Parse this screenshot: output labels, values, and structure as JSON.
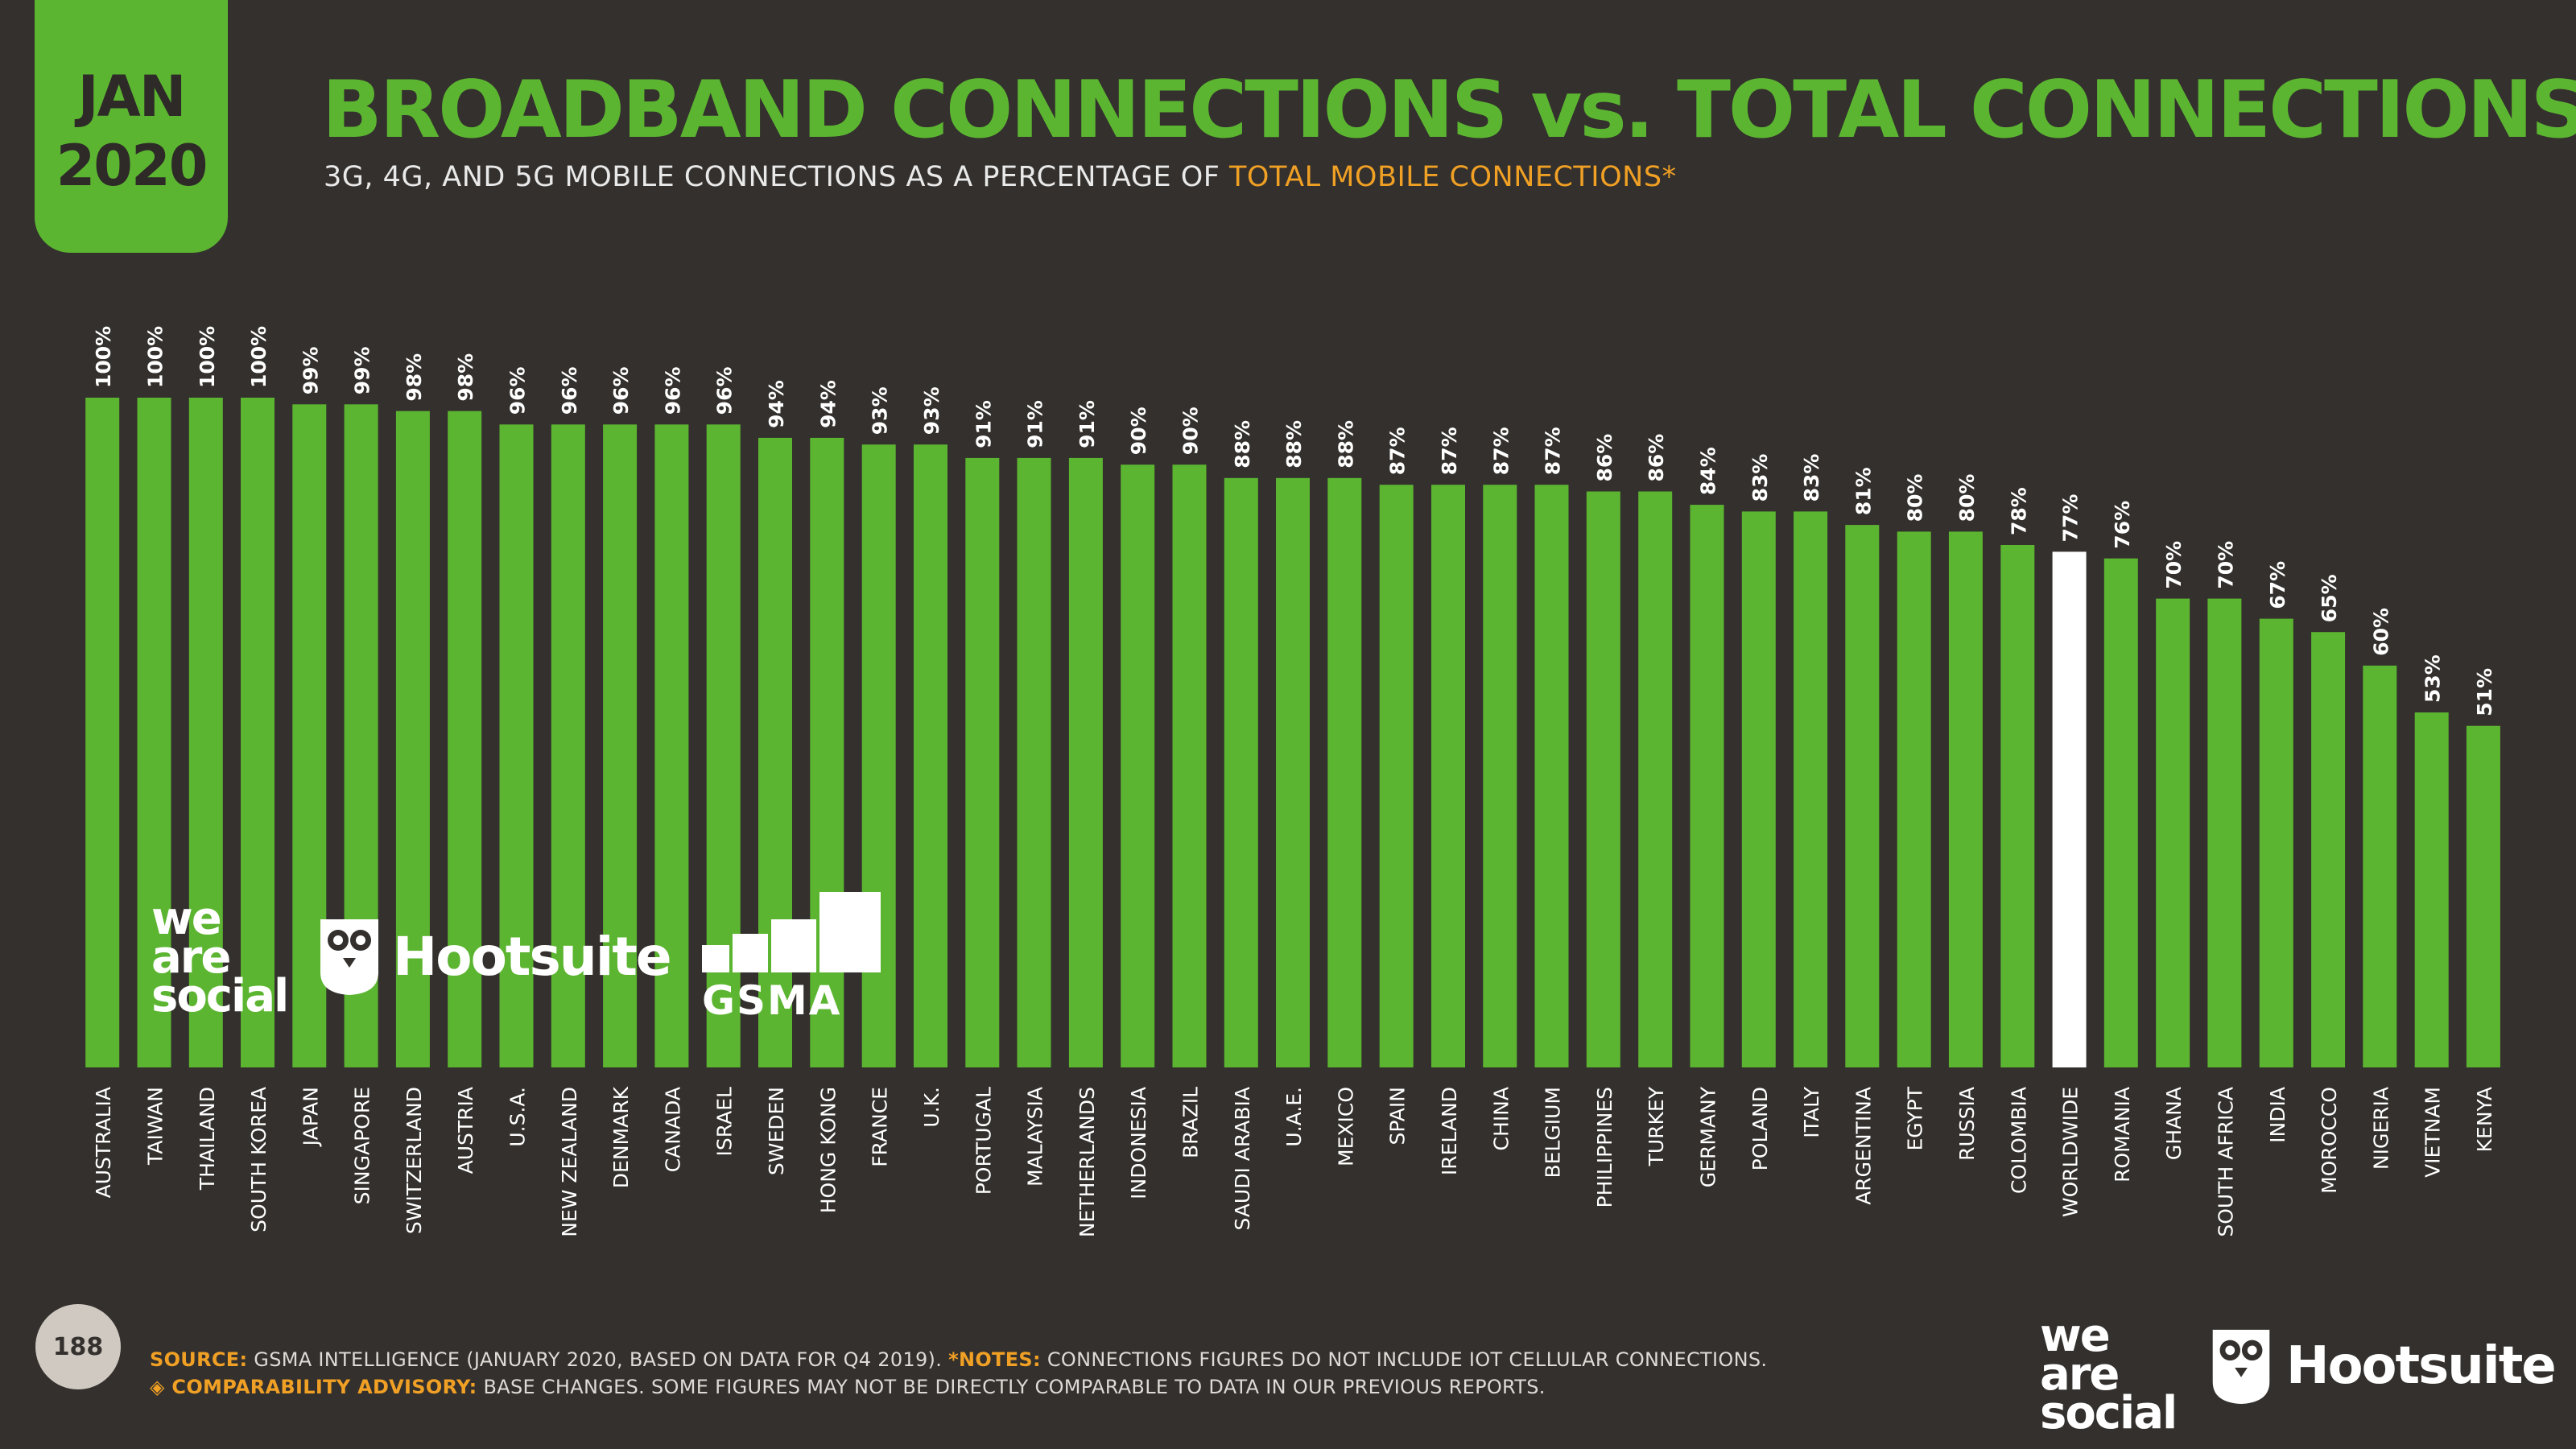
{
  "header": {
    "date_month": "JAN",
    "date_year": "2020",
    "title": "BROADBAND CONNECTIONS vs. TOTAL CONNECTIONS",
    "subtitle_main": "3G, 4G, AND 5G MOBILE CONNECTIONS AS A PERCENTAGE OF ",
    "subtitle_highlight": "TOTAL MOBILE CONNECTIONS*"
  },
  "colors": {
    "background": "#33302d",
    "bar": "#5cb531",
    "highlight_bar": "#ffffff",
    "accent": "#f0a024"
  },
  "chart_data": {
    "type": "bar",
    "categories": [
      "AUSTRALIA",
      "TAIWAN",
      "THAILAND",
      "SOUTH KOREA",
      "JAPAN",
      "SINGAPORE",
      "SWITZERLAND",
      "AUSTRIA",
      "U.S.A.",
      "NEW ZEALAND",
      "DENMARK",
      "CANADA",
      "ISRAEL",
      "SWEDEN",
      "HONG KONG",
      "FRANCE",
      "U.K.",
      "PORTUGAL",
      "MALAYSIA",
      "NETHERLANDS",
      "INDONESIA",
      "BRAZIL",
      "SAUDI ARABIA",
      "U.A.E.",
      "MEXICO",
      "SPAIN",
      "IRELAND",
      "CHINA",
      "BELGIUM",
      "PHILIPPINES",
      "TURKEY",
      "GERMANY",
      "POLAND",
      "ITALY",
      "ARGENTINA",
      "EGYPT",
      "RUSSIA",
      "COLOMBIA",
      "WORLDWIDE",
      "ROMANIA",
      "GHANA",
      "SOUTH AFRICA",
      "INDIA",
      "MOROCCO",
      "NIGERIA",
      "VIETNAM",
      "KENYA"
    ],
    "values": [
      100,
      100,
      100,
      100,
      99,
      99,
      98,
      98,
      96,
      96,
      96,
      96,
      96,
      94,
      94,
      93,
      93,
      91,
      91,
      91,
      90,
      90,
      88,
      88,
      88,
      87,
      87,
      87,
      87,
      86,
      86,
      84,
      83,
      83,
      81,
      80,
      80,
      78,
      77,
      76,
      70,
      70,
      67,
      65,
      60,
      53,
      51
    ],
    "labels": [
      "100%",
      "100%",
      "100%",
      "100%",
      "99%",
      "99%",
      "98%",
      "98%",
      "96%",
      "96%",
      "96%",
      "96%",
      "96%",
      "94%",
      "94%",
      "93%",
      "93%",
      "91%",
      "91%",
      "91%",
      "90%",
      "90%",
      "88%",
      "88%",
      "88%",
      "87%",
      "87%",
      "87%",
      "87%",
      "86%",
      "86%",
      "84%",
      "83%",
      "83%",
      "81%",
      "80%",
      "80%",
      "78%",
      "77%",
      "76%",
      "70%",
      "70%",
      "67%",
      "65%",
      "60%",
      "53%",
      "51%"
    ],
    "highlight": "WORLDWIDE",
    "ylim": [
      0,
      100
    ],
    "grid": false
  },
  "logos": {
    "was_line1": "we",
    "was_line2": "are",
    "was_line3": "social",
    "hootsuite": "Hootsuite",
    "gsma": "GSMA"
  },
  "footer": {
    "page_number": "188",
    "source_key": "SOURCE:",
    "source_text": " GSMA INTELLIGENCE (JANUARY 2020, BASED ON DATA FOR Q4 2019). ",
    "notes_key": "*NOTES:",
    "notes_text": " CONNECTIONS FIGURES DO NOT INCLUDE IOT CELLULAR CONNECTIONS.",
    "advisory_key": "◈ COMPARABILITY ADVISORY:",
    "advisory_text": " BASE CHANGES. SOME FIGURES MAY NOT BE DIRECTLY COMPARABLE TO DATA IN OUR PREVIOUS REPORTS."
  }
}
